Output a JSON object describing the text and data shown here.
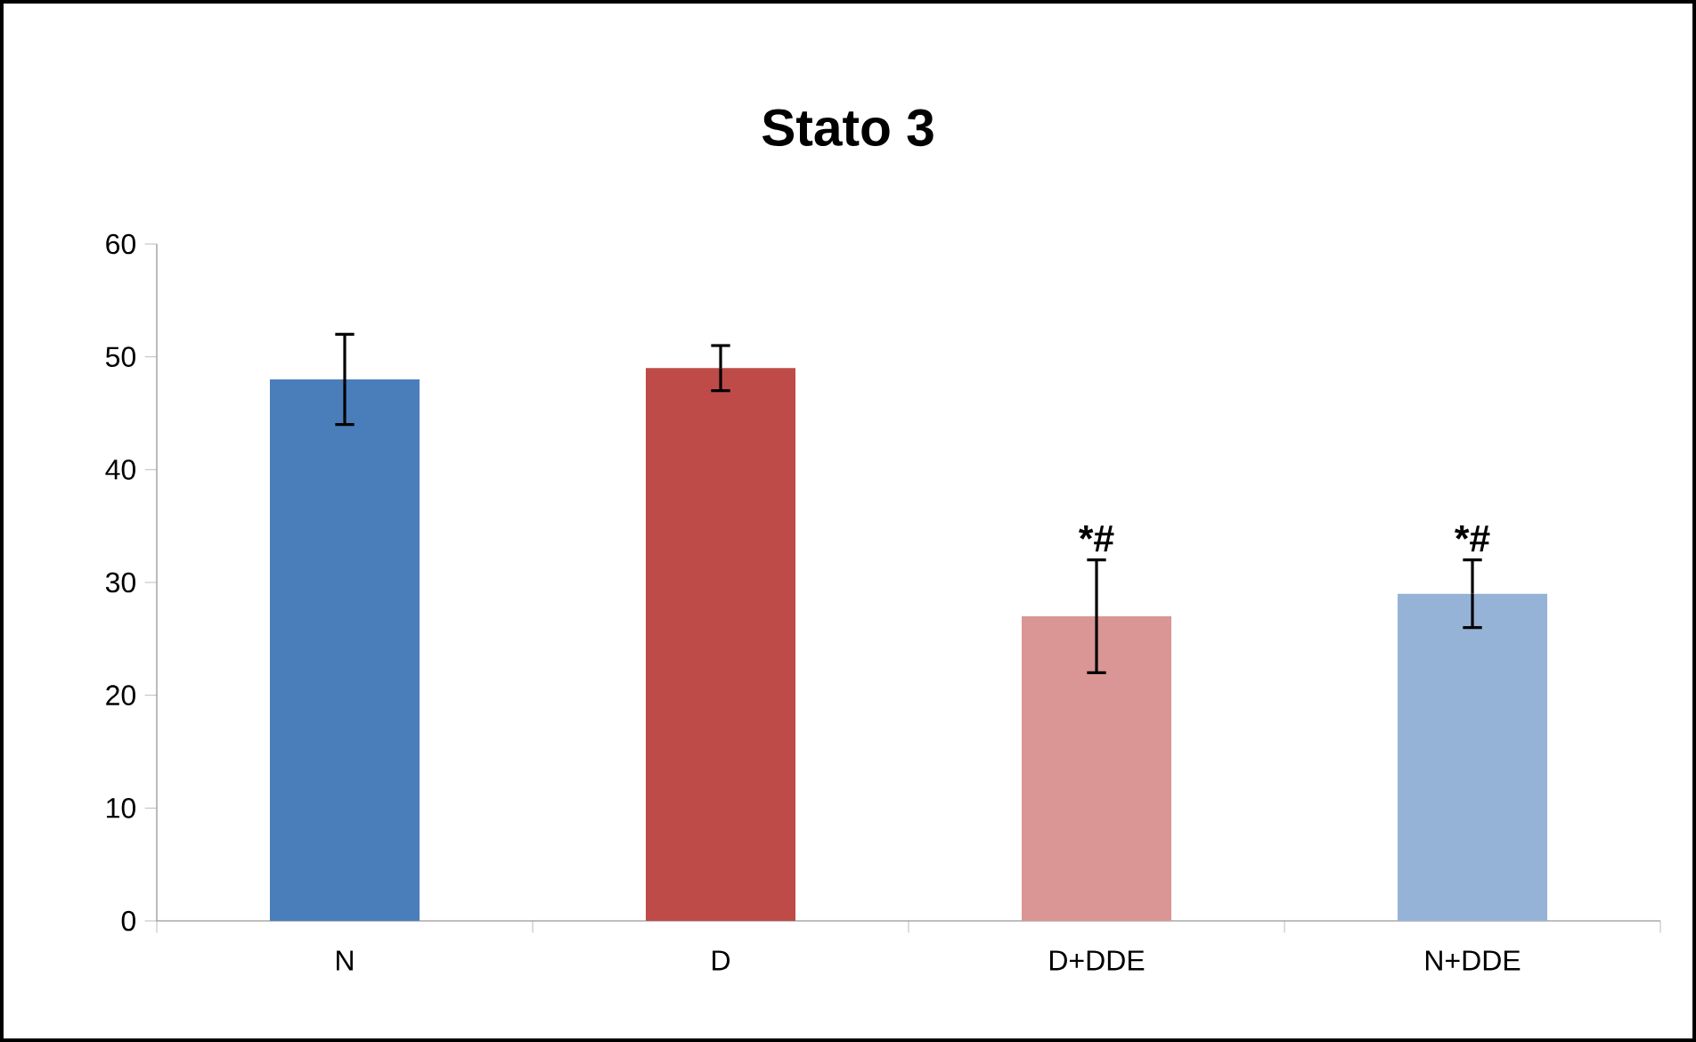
{
  "chart_data": {
    "type": "bar",
    "title": "Stato 3",
    "categories": [
      "N",
      "D",
      "D+DDE",
      "N+DDE"
    ],
    "values": [
      48,
      49,
      27,
      29
    ],
    "errors": [
      4,
      2,
      5,
      3
    ],
    "colors": [
      "#4a7ebb",
      "#be4b48",
      "#d99694",
      "#95b3d7"
    ],
    "ylim": [
      0,
      60
    ],
    "yticks": [
      0,
      10,
      20,
      30,
      40,
      50,
      60
    ],
    "grid": false,
    "annotations": [
      {
        "text": "*#",
        "x": "D+DDE",
        "y": 32
      },
      {
        "text": "*#",
        "x": "N+DDE",
        "y": 32
      }
    ]
  }
}
